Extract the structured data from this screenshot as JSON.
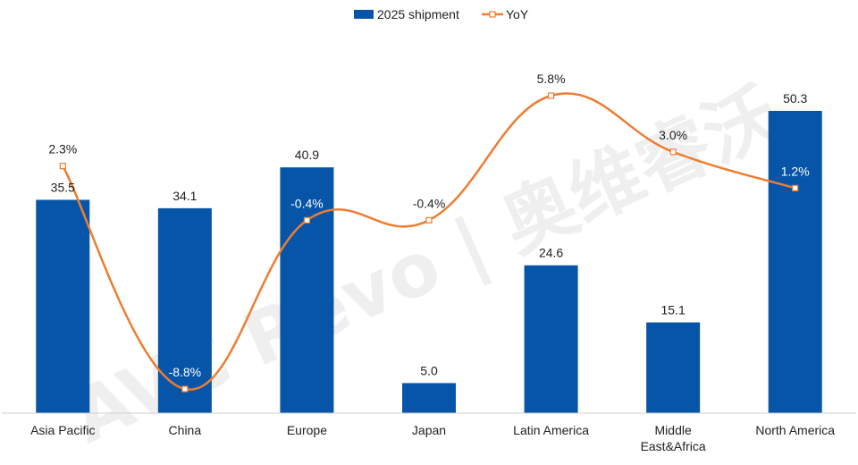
{
  "chart_data": {
    "type": "bar",
    "title": "",
    "xlabel": "",
    "ylabel": "",
    "ylim": [
      0,
      55
    ],
    "y2lim": [
      -10,
      7
    ],
    "categories": [
      "Asia Pacific",
      "China",
      "Europe",
      "Japan",
      "Latin America",
      "Middle\nEast&Africa",
      "North America"
    ],
    "series": [
      {
        "name": "2025 shipment",
        "type": "bar",
        "axis": "left",
        "color": "#0655a8",
        "values": [
          35.5,
          34.1,
          40.9,
          5.0,
          24.6,
          15.1,
          50.3
        ],
        "labels": [
          "35.5",
          "34.1",
          "40.9",
          "5.0",
          "24.6",
          "15.1",
          "50.3"
        ]
      },
      {
        "name": "YoY",
        "type": "line",
        "axis": "right",
        "color": "#ee7d31",
        "values": [
          2.3,
          -8.8,
          -0.4,
          -0.4,
          5.8,
          3.0,
          1.2
        ],
        "labels": [
          "2.3%",
          "-8.8%",
          "-0.4%",
          "-0.4%",
          "5.8%",
          "3.0%",
          "1.2%"
        ]
      }
    ],
    "legend": "top-center",
    "grid": false
  },
  "watermark": "AVC Revo | 奥维睿沃"
}
